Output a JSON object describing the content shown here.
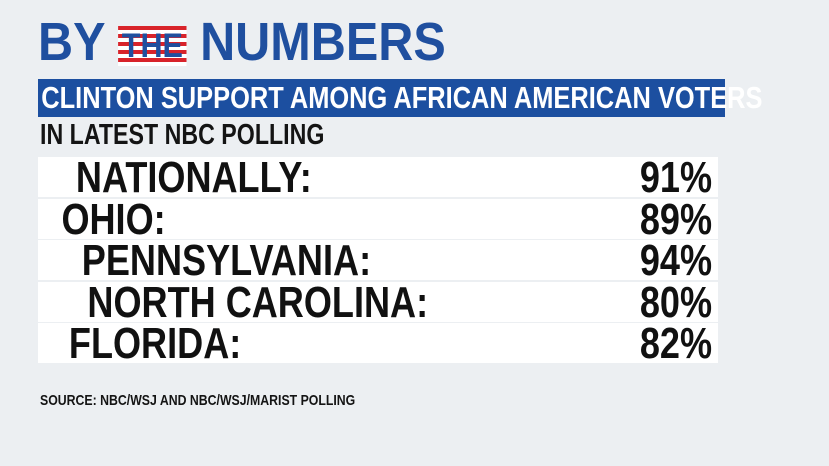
{
  "header": {
    "title": [
      "BY",
      "THE",
      "NUMBERS"
    ],
    "banner": "CLINTON SUPPORT AMONG AFRICAN AMERICAN VOTERS",
    "subtitle": "IN LATEST NBC POLLING"
  },
  "table": {
    "rows": [
      [
        "NATIONALLY:",
        "91%"
      ],
      [
        "OHIO:",
        "89%"
      ],
      [
        "PENNSYLVANIA:",
        "94%"
      ],
      [
        "NORTH CAROLINA:",
        "80%"
      ],
      [
        "FLORIDA:",
        "82%"
      ]
    ]
  },
  "footer": {
    "source": "SOURCE: NBC/WSJ AND NBC/WSJ/MARIST POLLING"
  }
}
